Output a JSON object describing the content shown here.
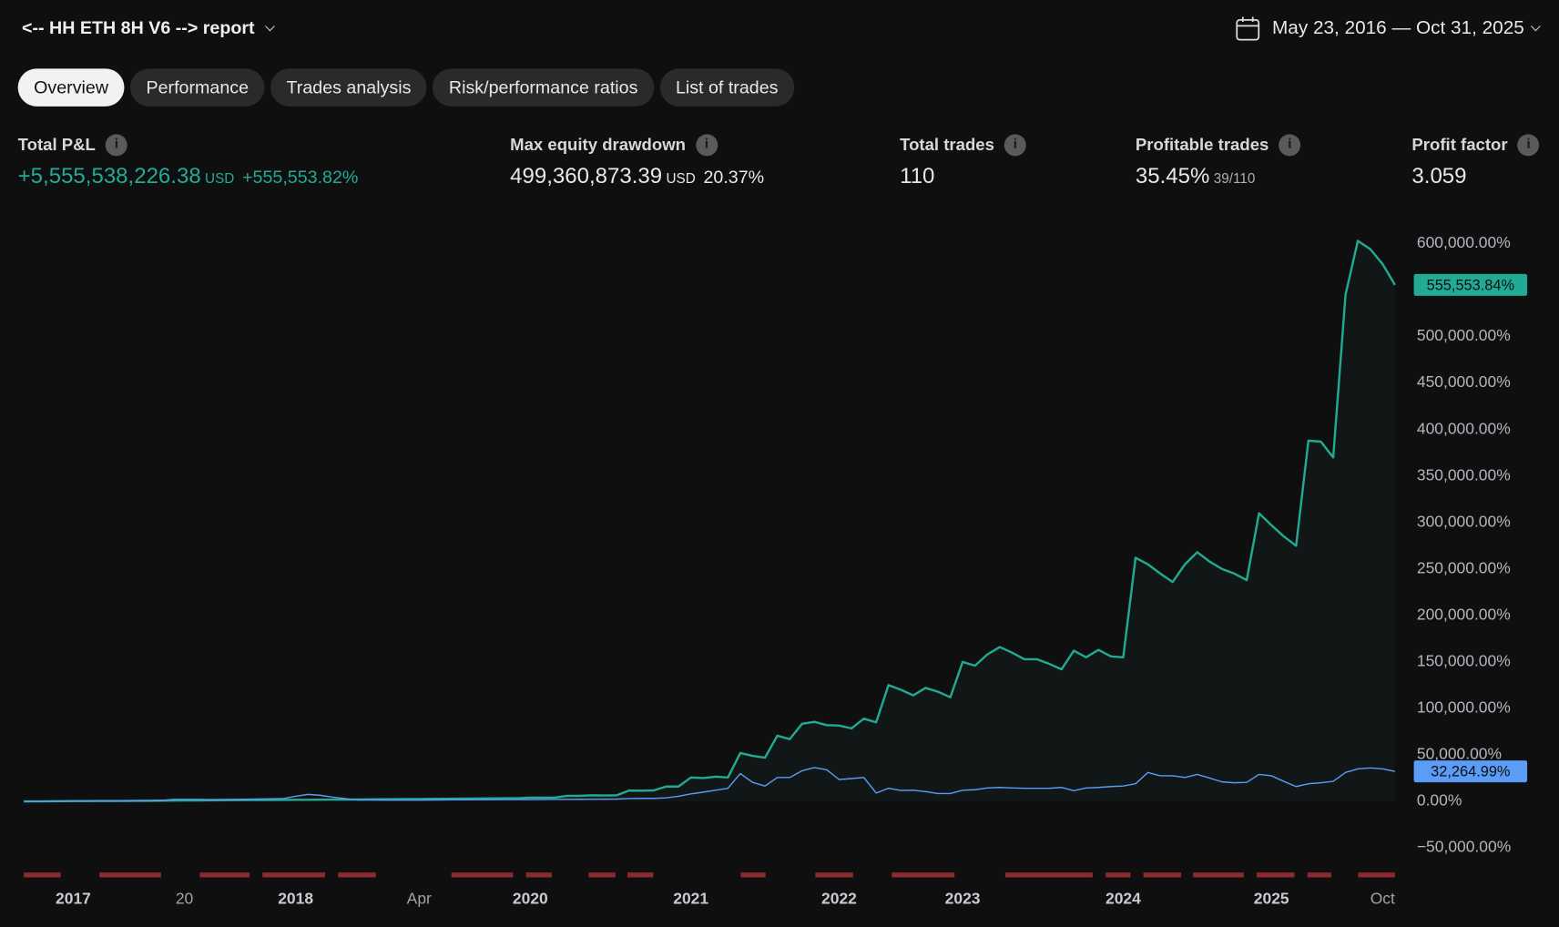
{
  "header": {
    "title": "<-- HH ETH 8H V6 --> report",
    "date_range": "May 23, 2016 — Oct 31, 2025"
  },
  "tabs": [
    "Overview",
    "Performance",
    "Trades analysis",
    "Risk/performance ratios",
    "List of trades"
  ],
  "stats": [
    {
      "label": "Total P&L",
      "value": "+5,555,538,226.38",
      "unit": "USD",
      "extra": "+555,553.82%"
    },
    {
      "label": "Max equity drawdown",
      "value": "499,360,873.39",
      "unit": "USD",
      "extra": "20.37%"
    },
    {
      "label": "Total trades",
      "value": "110"
    },
    {
      "label": "Profitable trades",
      "value": "35.45%",
      "extra": "39/110"
    },
    {
      "label": "Profit factor",
      "value": "3.059"
    }
  ],
  "chart_data": {
    "type": "line",
    "categories": [
      null,
      null,
      null,
      null,
      "2017",
      null,
      null,
      null,
      null,
      null,
      null,
      null,
      null,
      "20",
      null,
      null,
      null,
      null,
      null,
      null,
      null,
      null,
      "2018",
      null,
      null,
      null,
      null,
      null,
      null,
      null,
      null,
      null,
      "Apr",
      null,
      null,
      null,
      null,
      null,
      null,
      null,
      null,
      "2020",
      null,
      null,
      null,
      null,
      null,
      null,
      null,
      null,
      null,
      null,
      null,
      null,
      "2021",
      null,
      null,
      null,
      null,
      null,
      null,
      null,
      null,
      null,
      null,
      null,
      "2022",
      null,
      null,
      null,
      null,
      null,
      null,
      null,
      null,
      null,
      "2023",
      null,
      null,
      null,
      null,
      null,
      null,
      null,
      null,
      null,
      null,
      null,
      null,
      "2024",
      null,
      null,
      null,
      null,
      null,
      null,
      null,
      null,
      null,
      null,
      null,
      "2025",
      null,
      null,
      null,
      null,
      null,
      null,
      null,
      null,
      "Oct",
      null
    ],
    "series": [
      {
        "color": "#22ab94",
        "area": true,
        "end_label": "555,553.84%",
        "values": [
          0,
          0,
          100,
          200,
          300,
          300,
          400,
          400,
          500,
          600,
          700,
          800,
          900,
          1000,
          1000,
          1100,
          1200,
          1300,
          1400,
          1500,
          1500,
          1600,
          1700,
          1700,
          1800,
          1900,
          2000,
          2100,
          2200,
          2300,
          2400,
          2500,
          2600,
          2700,
          2800,
          2900,
          3000,
          3100,
          3200,
          3300,
          3500,
          4000,
          4000,
          4200,
          6000,
          6000,
          6500,
          6300,
          6500,
          11700,
          11500,
          11800,
          16000,
          16000,
          25700,
          25000,
          26500,
          25700,
          52000,
          49000,
          47000,
          70600,
          67000,
          83400,
          85600,
          82000,
          81500,
          78500,
          89000,
          85000,
          125000,
          120000,
          114000,
          122000,
          118000,
          112000,
          150000,
          146000,
          158000,
          166000,
          160000,
          153000,
          153000,
          148000,
          142000,
          162000,
          155000,
          163000,
          156000,
          155000,
          262000,
          255000,
          245000,
          236000,
          255000,
          268000,
          258000,
          250000,
          245000,
          238000,
          310000,
          297000,
          285000,
          275000,
          388000,
          387000,
          370000,
          545000,
          603000,
          594000,
          578000,
          555553.84
        ]
      },
      {
        "color": "#5b9cf6",
        "area": false,
        "end_label": "32,264.99%",
        "values": [
          0,
          0,
          100,
          100,
          200,
          200,
          300,
          300,
          400,
          400,
          500,
          800,
          2100,
          2200,
          2200,
          2000,
          2100,
          2200,
          2300,
          2500,
          2800,
          3000,
          5500,
          7500,
          6500,
          4500,
          3000,
          1500,
          1500,
          1400,
          1300,
          1300,
          1400,
          1500,
          1600,
          1700,
          1700,
          1800,
          1800,
          1900,
          2000,
          2000,
          2100,
          2200,
          2200,
          2300,
          2400,
          2400,
          2500,
          3000,
          3200,
          3200,
          3800,
          5500,
          8000,
          10000,
          12000,
          14000,
          29900,
          20500,
          16500,
          25700,
          25700,
          33000,
          36400,
          34000,
          23500,
          24500,
          25700,
          9000,
          14000,
          11800,
          12000,
          10500,
          8500,
          8500,
          12000,
          12500,
          14500,
          15000,
          14500,
          14000,
          14000,
          14000,
          15000,
          11500,
          14500,
          15000,
          16000,
          16500,
          19000,
          31000,
          27500,
          27500,
          25700,
          29000,
          25000,
          21000,
          20000,
          20500,
          29000,
          27500,
          21500,
          16000,
          19000,
          20000,
          21500,
          31000,
          35000,
          36000,
          35000,
          32264.99
        ]
      }
    ],
    "ylim": [
      -65000,
      620000
    ],
    "yticks": [
      {
        "value": 600000,
        "label": "600,000.00%"
      },
      {
        "value": 500000,
        "label": "500,000.00%"
      },
      {
        "value": 450000,
        "label": "450,000.00%"
      },
      {
        "value": 400000,
        "label": "400,000.00%"
      },
      {
        "value": 350000,
        "label": "350,000.00%"
      },
      {
        "value": 300000,
        "label": "300,000.00%"
      },
      {
        "value": 250000,
        "label": "250,000.00%"
      },
      {
        "value": 200000,
        "label": "200,000.00%"
      },
      {
        "value": 150000,
        "label": "150,000.00%"
      },
      {
        "value": 100000,
        "label": "100,000.00%"
      },
      {
        "value": 50000,
        "label": "50,000.00%"
      },
      {
        "value": 0,
        "label": "0.00%"
      },
      {
        "value": -50000,
        "label": "−50,000.00%"
      }
    ]
  }
}
